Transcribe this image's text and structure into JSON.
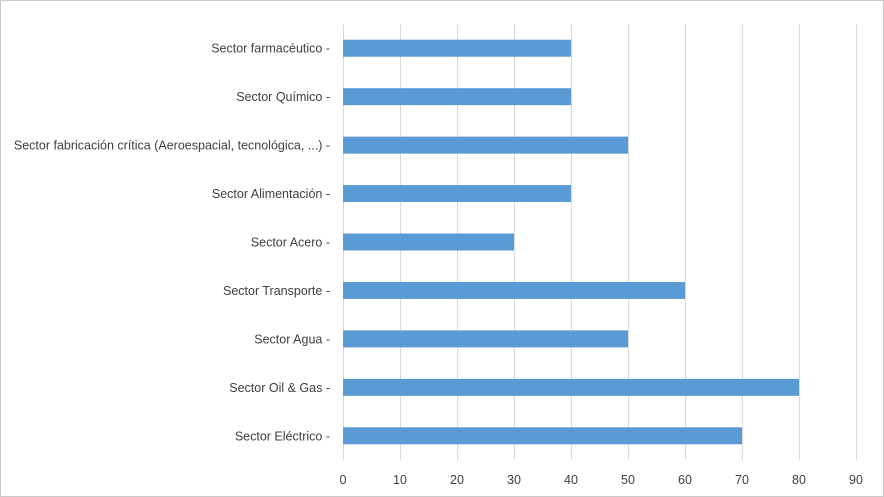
{
  "chart_data": {
    "type": "bar",
    "orientation": "horizontal",
    "title": "",
    "xlabel": "",
    "ylabel": "",
    "categories": [
      "Sector farmacéutico -",
      "Sector Químico -",
      "Sector fabricación crítica (Aeroespacial, tecnológica, ...) -",
      "Sector Alimentación -",
      "Sector Acero -",
      "Sector Transporte -",
      "Sector Agua -",
      "Sector Oil & Gas -",
      "Sector Eléctrico -"
    ],
    "values": [
      40,
      40,
      50,
      40,
      30,
      60,
      50,
      80,
      70
    ],
    "xlim": [
      0,
      90
    ],
    "ticks": [
      "0",
      "10",
      "20",
      "30",
      "40",
      "50",
      "60",
      "70",
      "80",
      "90"
    ],
    "grid": true,
    "legend": "none",
    "bar_color": "#5b9bd5",
    "grid_color": "#d9d9d9",
    "text_color": "#404040"
  }
}
